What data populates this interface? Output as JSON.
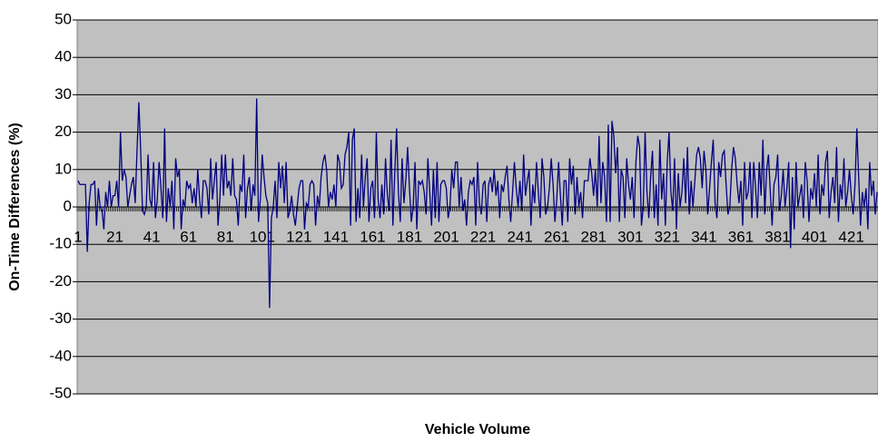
{
  "chart_data": {
    "type": "line",
    "xlabel": "Vehicle Volume",
    "ylabel": "On-Time Differences (%)",
    "categories": [
      "1",
      null,
      null,
      null,
      null,
      null,
      null,
      null,
      null,
      null,
      null,
      null,
      null,
      null,
      null,
      null,
      null,
      null,
      null,
      null,
      "21",
      null,
      null,
      null,
      null,
      null,
      null,
      null,
      null,
      null,
      null,
      null,
      null,
      null,
      null,
      null,
      null,
      null,
      null,
      null,
      "41",
      null,
      null,
      null,
      null,
      null,
      null,
      null,
      null,
      null,
      null,
      null,
      null,
      null,
      null,
      null,
      null,
      null,
      null,
      null,
      "61",
      null,
      null,
      null,
      null,
      null,
      null,
      null,
      null,
      null,
      null,
      null,
      null,
      null,
      null,
      null,
      null,
      null,
      null,
      null,
      "81",
      null,
      null,
      null,
      null,
      null,
      null,
      null,
      null,
      null,
      null,
      null,
      null,
      null,
      null,
      null,
      null,
      null,
      null,
      null,
      "101",
      null,
      null,
      null,
      null,
      null,
      null,
      null,
      null,
      null,
      null,
      null,
      null,
      null,
      null,
      null,
      null,
      null,
      null,
      null,
      "121",
      null,
      null,
      null,
      null,
      null,
      null,
      null,
      null,
      null,
      null,
      null,
      null,
      null,
      null,
      null,
      null,
      null,
      null,
      null,
      "141",
      null,
      null,
      null,
      null,
      null,
      null,
      null,
      null,
      null,
      null,
      null,
      null,
      null,
      null,
      null,
      null,
      null,
      null,
      null,
      "161",
      null,
      null,
      null,
      null,
      null,
      null,
      null,
      null,
      null,
      null,
      null,
      null,
      null,
      null,
      null,
      null,
      null,
      null,
      null,
      "181",
      null,
      null,
      null,
      null,
      null,
      null,
      null,
      null,
      null,
      null,
      null,
      null,
      null,
      null,
      null,
      null,
      null,
      null,
      null,
      "201",
      null,
      null,
      null,
      null,
      null,
      null,
      null,
      null,
      null,
      null,
      null,
      null,
      null,
      null,
      null,
      null,
      null,
      null,
      null,
      "221",
      null,
      null,
      null,
      null,
      null,
      null,
      null,
      null,
      null,
      null,
      null,
      null,
      null,
      null,
      null,
      null,
      null,
      null,
      null,
      "241",
      null,
      null,
      null,
      null,
      null,
      null,
      null,
      null,
      null,
      null,
      null,
      null,
      null,
      null,
      null,
      null,
      null,
      null,
      null,
      "261",
      null,
      null,
      null,
      null,
      null,
      null,
      null,
      null,
      null,
      null,
      null,
      null,
      null,
      null,
      null,
      null,
      null,
      null,
      null,
      "281",
      null,
      null,
      null,
      null,
      null,
      null,
      null,
      null,
      null,
      null,
      null,
      null,
      null,
      null,
      null,
      null,
      null,
      null,
      null,
      "301",
      null,
      null,
      null,
      null,
      null,
      null,
      null,
      null,
      null,
      null,
      null,
      null,
      null,
      null,
      null,
      null,
      null,
      null,
      null,
      "321",
      null,
      null,
      null,
      null,
      null,
      null,
      null,
      null,
      null,
      null,
      null,
      null,
      null,
      null,
      null,
      null,
      null,
      null,
      null,
      "341",
      null,
      null,
      null,
      null,
      null,
      null,
      null,
      null,
      null,
      null,
      null,
      null,
      null,
      null,
      null,
      null,
      null,
      null,
      null,
      "361",
      null,
      null,
      null,
      null,
      null,
      null,
      null,
      null,
      null,
      null,
      null,
      null,
      null,
      null,
      null,
      null,
      null,
      null,
      null,
      "381",
      null,
      null,
      null,
      null,
      null,
      null,
      null,
      null,
      null,
      null,
      null,
      null,
      null,
      null,
      null,
      null,
      null,
      null,
      null,
      "401",
      null,
      null,
      null,
      null,
      null,
      null,
      null,
      null,
      null,
      null,
      null,
      null,
      null,
      null,
      null,
      null,
      null,
      null,
      null,
      "421",
      null,
      null,
      null,
      null,
      null,
      null,
      null,
      null,
      null,
      null,
      null,
      null,
      null,
      null
    ],
    "values": [
      7,
      6,
      6,
      6,
      6,
      -12,
      1,
      6,
      6,
      7,
      -5,
      5,
      0,
      -1,
      -6,
      4,
      0,
      7,
      0,
      3,
      3,
      7,
      0,
      20,
      7,
      10,
      8,
      0,
      3,
      6,
      8,
      1,
      15,
      28,
      15,
      -1,
      -2,
      0,
      14,
      2,
      0,
      12,
      -3,
      2,
      12,
      5,
      -3,
      21,
      -4,
      5,
      0,
      7,
      -6,
      13,
      8,
      10,
      -6,
      2,
      0,
      7,
      5,
      6,
      1,
      5,
      0,
      10,
      2,
      -3,
      7,
      7,
      5,
      -2,
      13,
      2,
      7,
      12,
      -5,
      2,
      14,
      3,
      14,
      5,
      7,
      3,
      13,
      3,
      2,
      -5,
      6,
      4,
      14,
      -3,
      5,
      8,
      -1,
      6,
      3,
      29,
      -4,
      2,
      14,
      8,
      3,
      1,
      -27,
      -3,
      0,
      7,
      -3,
      12,
      5,
      11,
      1,
      12,
      -3,
      -1,
      3,
      -2,
      -5,
      0,
      5,
      7,
      7,
      -6,
      1,
      0,
      6,
      7,
      6,
      -5,
      3,
      0,
      8,
      12,
      14,
      10,
      0,
      4,
      2,
      6,
      0,
      14,
      12,
      5,
      6,
      14,
      16,
      20,
      -5,
      18,
      21,
      -4,
      5,
      -3,
      14,
      0,
      8,
      13,
      -4,
      5,
      7,
      -3,
      20,
      2,
      -3,
      6,
      -2,
      13,
      3,
      -1,
      18,
      -5,
      9,
      21,
      4,
      -4,
      13,
      1,
      7,
      16,
      5,
      -4,
      0,
      12,
      -6,
      7,
      6,
      7,
      4,
      -2,
      13,
      4,
      -5,
      10,
      -3,
      12,
      -4,
      6,
      7,
      7,
      5,
      -3,
      0,
      10,
      5,
      12,
      12,
      0,
      8,
      -1,
      2,
      -5,
      4,
      7,
      6,
      8,
      -5,
      12,
      1,
      -2,
      6,
      7,
      -4,
      6,
      8,
      4,
      10,
      3,
      7,
      -3,
      6,
      4,
      8,
      11,
      2,
      -4,
      4,
      12,
      5,
      0,
      7,
      -1,
      14,
      3,
      7,
      10,
      -5,
      6,
      1,
      12,
      4,
      -3,
      13,
      8,
      -2,
      0,
      5,
      13,
      6,
      -4,
      2,
      12,
      3,
      -5,
      7,
      7,
      -4,
      13,
      6,
      11,
      -2,
      8,
      0,
      4,
      -3,
      7,
      7,
      7,
      13,
      9,
      3,
      10,
      0,
      19,
      1,
      12,
      8,
      -4,
      22,
      -4,
      23,
      19,
      9,
      16,
      -4,
      10,
      8,
      -3,
      13,
      6,
      2,
      8,
      -3,
      12,
      19,
      16,
      -5,
      0,
      20,
      4,
      -3,
      8,
      15,
      -3,
      6,
      -5,
      18,
      2,
      9,
      -5,
      12,
      20,
      4,
      -1,
      13,
      -6,
      9,
      0,
      4,
      13,
      1,
      16,
      -2,
      7,
      0,
      7,
      14,
      16,
      13,
      5,
      15,
      10,
      -2,
      5,
      12,
      18,
      1,
      -3,
      12,
      8,
      14,
      15,
      6,
      -2,
      0,
      10,
      16,
      13,
      6,
      1,
      7,
      -5,
      12,
      2,
      4,
      12,
      -3,
      12,
      5,
      -3,
      12,
      3,
      18,
      -2,
      10,
      14,
      4,
      -5,
      6,
      8,
      14,
      -1,
      3,
      10,
      0,
      5,
      12,
      -11,
      8,
      -6,
      12,
      0,
      3,
      6,
      -3,
      12,
      7,
      -4,
      5,
      2,
      9,
      0,
      14,
      -2,
      6,
      3,
      12,
      15,
      -3,
      4,
      8,
      1,
      16,
      -4,
      6,
      2,
      13,
      0,
      4,
      10,
      3,
      -2,
      6,
      21,
      8,
      -5,
      4,
      0,
      5,
      -6,
      12,
      3,
      7,
      -2,
      4
    ],
    "color": "#000080",
    "ylim": [
      -50,
      50
    ],
    "yticks": [
      -50,
      -40,
      -30,
      -20,
      -10,
      0,
      10,
      20,
      30,
      40,
      50
    ],
    "grid": true
  }
}
